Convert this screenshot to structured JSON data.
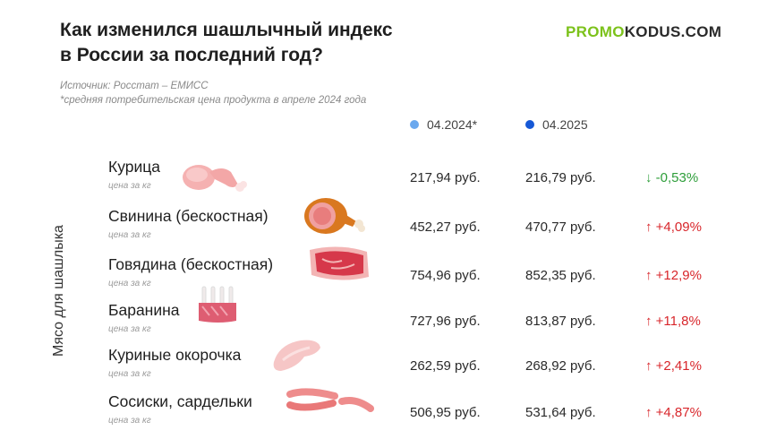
{
  "title": {
    "line1": "Как изменился шашлычный индекс",
    "line2": "в России за последний год?"
  },
  "logo": {
    "part1": "PROMO",
    "part2": "KODUS",
    "part3": ".COM"
  },
  "source": {
    "line1": "Источник: Росстат – ЕМИСС",
    "line2": "*средняя потребительская цена продукта в апреле 2024 года"
  },
  "legend": {
    "label_2024": "04.2024*",
    "label_2025": "04.2025",
    "color_2024": "#6aa8ee",
    "color_2025": "#1658d6"
  },
  "side_label": "Мясо для шашлыка",
  "unit_label": "цена за кг",
  "colors": {
    "down": "#2e9e3a",
    "up": "#d8262b"
  },
  "rows": [
    {
      "name": "Курица",
      "price_2024": "217,94 руб.",
      "price_2025": "216,79 руб.",
      "change": "↓ -0,53%",
      "icon": "chicken-icon"
    },
    {
      "name": "Свинина (бескостная)",
      "price_2024": "452,27 руб.",
      "price_2025": "470,77 руб.",
      "change": "↑ +4,09%",
      "icon": "ham-icon"
    },
    {
      "name": "Говядина (бескостная)",
      "price_2024": "754,96 руб.",
      "price_2025": "852,35  руб.",
      "change": "↑ +12,9%",
      "icon": "steak-icon"
    },
    {
      "name": "Баранина",
      "price_2024": "727,96 руб.",
      "price_2025": "813,87 руб.",
      "change": "↑ +11,8%",
      "icon": "lamb-rack-icon"
    },
    {
      "name": "Куриные окорочка",
      "price_2024": "262,59 руб.",
      "price_2025": "268,92 руб.",
      "change": "↑ +2,41%",
      "icon": "chicken-leg-icon"
    },
    {
      "name": "Сосиски, сардельки",
      "price_2024": "506,95 руб.",
      "price_2025": "531,64 руб.",
      "change": "↑ +4,87%",
      "icon": "sausages-icon"
    }
  ]
}
